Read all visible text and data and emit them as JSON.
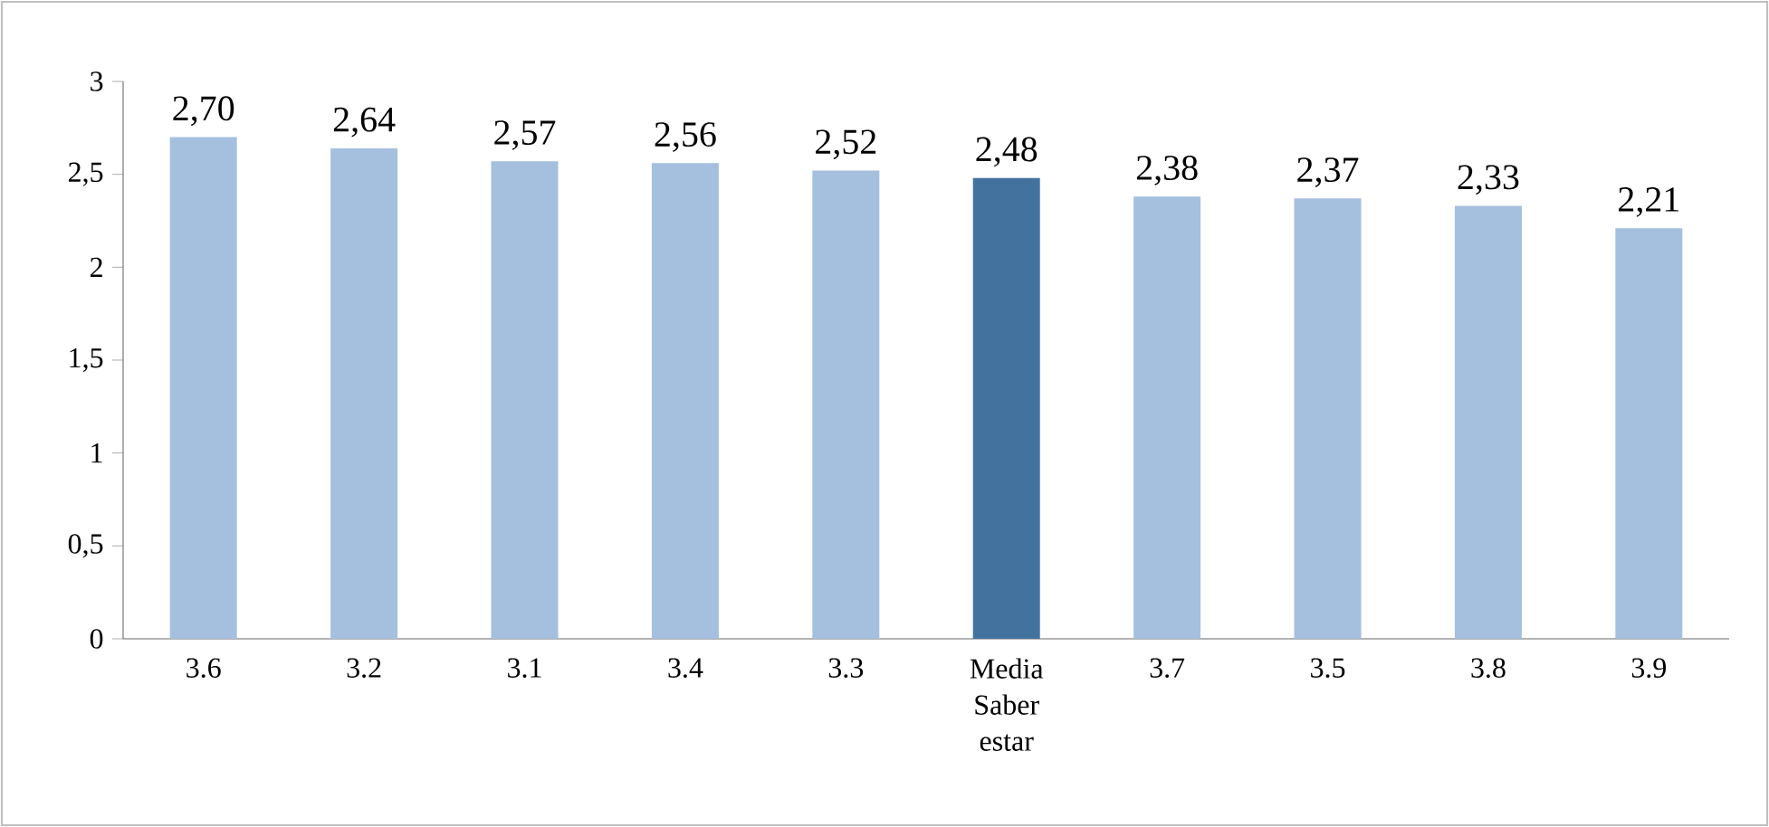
{
  "chart_data": {
    "type": "bar",
    "categories": [
      "3.6",
      "3.2",
      "3.1",
      "3.4",
      "3.3",
      "Media Saber estar",
      "3.7",
      "3.5",
      "3.8",
      "3.9"
    ],
    "values": [
      2.7,
      2.64,
      2.57,
      2.56,
      2.52,
      2.48,
      2.38,
      2.37,
      2.33,
      2.21
    ],
    "colors": [
      "#a5bfdf",
      "#a5bfdf",
      "#a5bfdf",
      "#a5bfdf",
      "#a5bfdf",
      "#44729f",
      "#a5bfdf",
      "#a5bfdf",
      "#a5bfdf",
      "#a5bfdf"
    ],
    "value_labels": [
      "2,70",
      "2,64",
      "2,57",
      "2,56",
      "2,52",
      "2,48",
      "2,38",
      "2,37",
      "2,33",
      "2,21"
    ],
    "ylim": [
      0,
      3
    ],
    "yticks": [
      0,
      {
        "value": 0.5,
        "label": "0,5"
      },
      1,
      {
        "value": 1.5,
        "label": "1,5"
      },
      2,
      {
        "value": 2.5,
        "label": "2,5"
      },
      3
    ]
  }
}
